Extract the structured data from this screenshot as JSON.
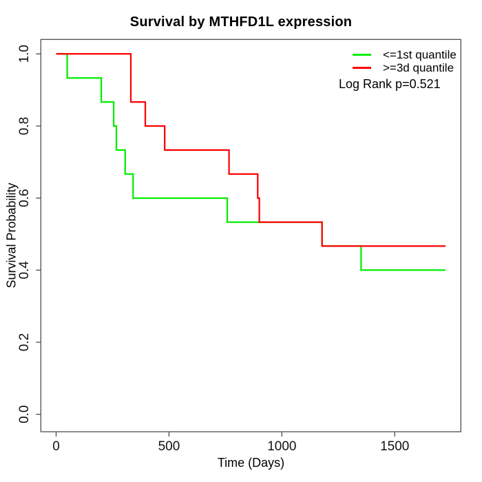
{
  "chart_data": {
    "type": "line",
    "subtype": "kaplan_meier_step",
    "title": "Survival by MTHFD1L expression",
    "xlabel": "Time (Days)",
    "ylabel": "Survival Probability",
    "xlim": [
      0,
      1725
    ],
    "ylim": [
      0,
      1
    ],
    "grid": false,
    "legend_position": "top-right",
    "annotation": "Log Rank p=0.521",
    "x_ticks": [
      {
        "v": 0,
        "label": "0"
      },
      {
        "v": 500,
        "label": "500"
      },
      {
        "v": 1000,
        "label": "1000"
      },
      {
        "v": 1500,
        "label": "1500"
      }
    ],
    "y_ticks": [
      {
        "v": 0.0,
        "label": "0.0"
      },
      {
        "v": 0.2,
        "label": "0.2"
      },
      {
        "v": 0.4,
        "label": "0.4"
      },
      {
        "v": 0.6,
        "label": "0.6"
      },
      {
        "v": 0.8,
        "label": "0.8"
      },
      {
        "v": 1.0,
        "label": "1.0"
      }
    ],
    "series": [
      {
        "name": "<=1st quantile",
        "color": "#00ee00",
        "points": [
          [
            0,
            1.0
          ],
          [
            49,
            0.9333
          ],
          [
            200,
            0.8667
          ],
          [
            255,
            0.8
          ],
          [
            267,
            0.7333
          ],
          [
            306,
            0.6667
          ],
          [
            341,
            0.6
          ],
          [
            758,
            0.5333
          ],
          [
            1178,
            0.4667
          ],
          [
            1351,
            0.4
          ],
          [
            1725,
            0.4
          ]
        ]
      },
      {
        "name": ">=3d quantile",
        "color": "#ff0000",
        "points": [
          [
            0,
            1.0
          ],
          [
            331,
            0.8667
          ],
          [
            395,
            0.8
          ],
          [
            481,
            0.7333
          ],
          [
            766,
            0.6667
          ],
          [
            893,
            0.6
          ],
          [
            900,
            0.5333
          ],
          [
            1178,
            0.4667
          ],
          [
            1725,
            0.4667
          ]
        ]
      }
    ]
  }
}
